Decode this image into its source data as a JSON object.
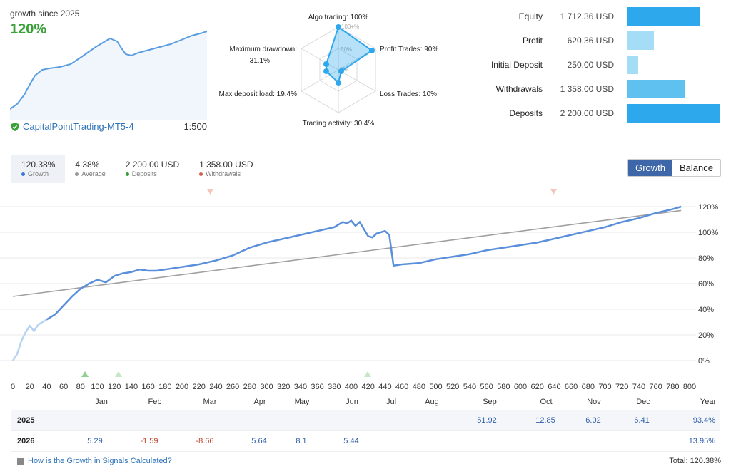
{
  "summary": {
    "growth_label": "growth since 2025",
    "growth_value": "120%",
    "account_name": "CapitalPointTrading-MT5-4",
    "leverage": "1:500"
  },
  "radar": {
    "title_top": "Algo trading: 100%",
    "profit_trades": "Profit Trades: 90%",
    "loss_trades": "Loss Trades: 10%",
    "trading_activity": "Trading activity: 30.4%",
    "max_deposit_load": "Max deposit load: 19.4%",
    "max_drawdown_label": "Maximum drawdown:",
    "max_drawdown_value": "31.1%",
    "ring_labels": [
      "100+%",
      "50%",
      "0%"
    ],
    "values": [
      100,
      90,
      10,
      30.4,
      19.4,
      31.1
    ]
  },
  "stats": [
    {
      "label": "Equity",
      "value": "1 712.36 USD",
      "amount": 1712.36,
      "color": "#2ea8ec"
    },
    {
      "label": "Profit",
      "value": "620.36 USD",
      "amount": 620.36,
      "color": "#a6ddf6"
    },
    {
      "label": "Initial Deposit",
      "value": "250.00 USD",
      "amount": 250.0,
      "color": "#a6ddf6"
    },
    {
      "label": "Withdrawals",
      "value": "1 358.00 USD",
      "amount": 1358.0,
      "color": "#5ec1ef"
    },
    {
      "label": "Deposits",
      "value": "2 200.00 USD",
      "amount": 2200.0,
      "color": "#2ea8ec"
    }
  ],
  "tabs": [
    {
      "value": "120.38%",
      "label": "Growth",
      "dot": "#3c78d8"
    },
    {
      "value": "4.38%",
      "label": "Average",
      "dot": "#999999"
    },
    {
      "value": "2 200.00 USD",
      "label": "Deposits",
      "dot": "#3aa03a"
    },
    {
      "value": "1 358.00 USD",
      "label": "Withdrawals",
      "dot": "#d0604a"
    }
  ],
  "toggle": {
    "growth": "Growth",
    "balance": "Balance"
  },
  "chart_data": {
    "type": "line",
    "x_ticks": [
      0,
      20,
      40,
      60,
      80,
      100,
      120,
      140,
      160,
      180,
      200,
      220,
      240,
      260,
      280,
      300,
      320,
      340,
      360,
      380,
      400,
      420,
      440,
      460,
      480,
      500,
      520,
      540,
      560,
      580,
      600,
      620,
      640,
      660,
      680,
      700,
      720,
      740,
      760,
      780,
      800
    ],
    "y_ticks": [
      "120%",
      "100%",
      "80%",
      "60%",
      "40%",
      "20%",
      "0%"
    ],
    "ylim": [
      0,
      120
    ],
    "xlim": [
      0,
      800
    ],
    "months": [
      "Jan",
      "Feb",
      "Mar",
      "Apr",
      "May",
      "Jun",
      "Jul",
      "Aug",
      "Sep",
      "Oct",
      "Nov",
      "Dec",
      "Year"
    ],
    "series": [
      {
        "color": "#5a8fdc",
        "x": [
          0,
          5,
          10,
          15,
          20,
          25,
          30,
          40,
          50,
          60,
          70,
          80,
          90,
          100,
          110,
          120,
          130,
          140,
          150,
          160,
          170,
          180,
          200,
          220,
          240,
          260,
          280,
          300,
          320,
          340,
          360,
          380,
          390,
          395,
          400,
          405,
          410,
          420,
          425,
          430,
          440,
          445,
          450,
          460,
          480,
          500,
          520,
          540,
          560,
          580,
          600,
          620,
          640,
          660,
          680,
          700,
          720,
          740,
          760,
          780,
          790
        ],
        "y": [
          0,
          5,
          15,
          22,
          27,
          23,
          28,
          32,
          36,
          43,
          50,
          56,
          60,
          63,
          61,
          66,
          68,
          69,
          71,
          70,
          70,
          71,
          73,
          75,
          78,
          82,
          88,
          92,
          95,
          98,
          101,
          104,
          108,
          107,
          109,
          105,
          108,
          97,
          96,
          99,
          101,
          98,
          74,
          75,
          76,
          79,
          81,
          83,
          86,
          88,
          90,
          92,
          95,
          98,
          101,
          104,
          108,
          111,
          115,
          118,
          120
        ]
      },
      {
        "color": "#a0a0a0",
        "x": [
          0,
          790
        ],
        "y": [
          50,
          117
        ]
      }
    ]
  },
  "table": {
    "rows": [
      {
        "year": "2025",
        "values": [
          "",
          "",
          "",
          "",
          "",
          "",
          "",
          "",
          "51.92",
          "12.85",
          "6.02",
          "6.41"
        ],
        "total": "93.4%"
      },
      {
        "year": "2026",
        "values": [
          "5.29",
          "-1.59",
          "-8.66",
          "5.64",
          "8.1",
          "5.44",
          "",
          "",
          "",
          "",
          "",
          ""
        ],
        "total": "13.95%"
      }
    ]
  },
  "footer": {
    "link": "How is the Growth in Signals Calculated?",
    "total": "Total: 120.38%"
  }
}
